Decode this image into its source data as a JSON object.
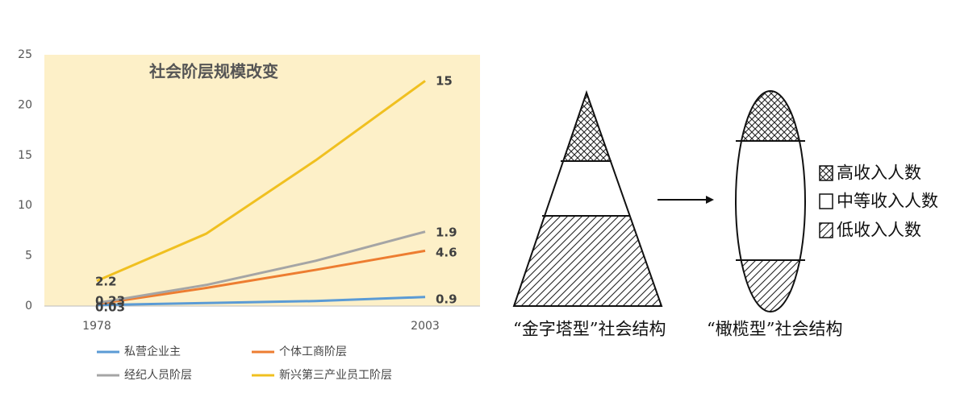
{
  "chart_data": {
    "type": "line",
    "title": "社会阶层规模改变",
    "categories": [
      "1978",
      null,
      null,
      "2003"
    ],
    "series": [
      {
        "name": "私营企业主",
        "color": "#5b9bd5",
        "values": [
          0.1,
          0.3,
          0.5,
          0.9
        ]
      },
      {
        "name": "个体工商阶层",
        "color": "#ed7d31",
        "values": [
          0.2,
          1.8,
          3.6,
          5.5
        ]
      },
      {
        "name": "经纪人员阶层",
        "color": "#a5a5a5",
        "values": [
          0.3,
          2.1,
          4.5,
          7.4
        ]
      },
      {
        "name": "新兴第三产业员工阶层",
        "color": "#f0c020",
        "values": [
          2.5,
          7.2,
          14.5,
          22.4
        ]
      }
    ],
    "annotations": [
      "2.2",
      "0.23",
      "0.03",
      "15",
      "1.9",
      "4.6",
      "0.9"
    ],
    "ylim": [
      0,
      25
    ],
    "yticks": [
      0,
      5,
      10,
      15,
      20,
      25
    ],
    "grid": false,
    "legend": "bottom"
  },
  "diagram": {
    "legend": [
      "高收入人数",
      "中等收入人数",
      "低收入人数"
    ],
    "captions": [
      "“金字塔型”社会结构",
      "“橄榄型”社会结构"
    ]
  }
}
